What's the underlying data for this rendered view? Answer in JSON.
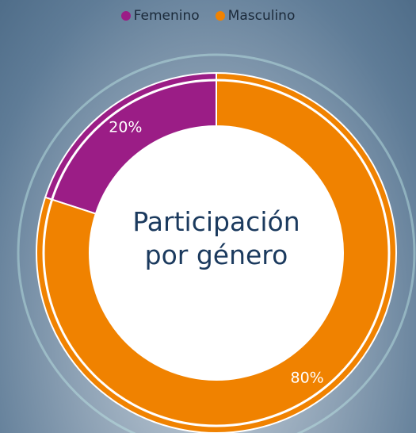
{
  "chart_data": {
    "type": "pie",
    "title": "Participación por género",
    "categories": [
      "Femenino",
      "Masculino"
    ],
    "values": [
      20,
      80
    ],
    "value_labels": [
      "20%",
      "80%"
    ],
    "colors": [
      "#9b1d86",
      "#f08200"
    ],
    "legend": "top"
  }
}
